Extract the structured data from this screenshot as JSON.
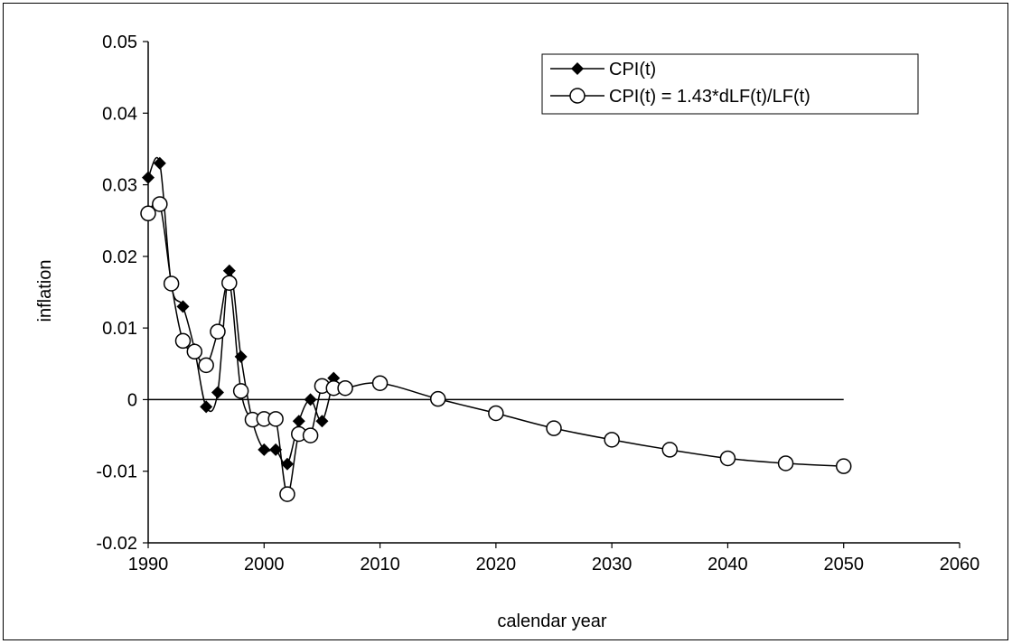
{
  "chart_data": {
    "type": "line",
    "title": "",
    "xlabel": "calendar year",
    "ylabel": "inflation",
    "xlim": [
      1990,
      2060
    ],
    "ylim": [
      -0.02,
      0.05
    ],
    "x_ticks": [
      1990,
      2000,
      2010,
      2020,
      2030,
      2040,
      2050,
      2060
    ],
    "y_ticks": [
      -0.02,
      -0.01,
      0,
      0.01,
      0.02,
      0.03,
      0.04,
      0.05
    ],
    "x_tick_labels": [
      "1990",
      "2000",
      "2010",
      "2020",
      "2030",
      "2040",
      "2050",
      "2060"
    ],
    "y_tick_labels": [
      "-0.02",
      "-0.01",
      "0",
      "0.01",
      "0.02",
      "0.03",
      "0.04",
      "0.05"
    ],
    "grid": false,
    "legend_position": "top-right",
    "zero_line": {
      "from": 1990,
      "to": 2050
    },
    "series": [
      {
        "name": "CPI(t)",
        "marker": "filled-diamond",
        "color": "#000000",
        "points": [
          [
            1990,
            0.031
          ],
          [
            1991,
            0.033
          ],
          [
            1992,
            0.016
          ],
          [
            1993,
            0.013
          ],
          [
            1994,
            0.007
          ],
          [
            1995,
            -0.001
          ],
          [
            1996,
            0.001
          ],
          [
            1997,
            0.018
          ],
          [
            1998,
            0.006
          ],
          [
            1999,
            -0.003
          ],
          [
            2000,
            -0.007
          ],
          [
            2001,
            -0.007
          ],
          [
            2002,
            -0.009
          ],
          [
            2003,
            -0.003
          ],
          [
            2004,
            0.0
          ],
          [
            2005,
            -0.003
          ],
          [
            2006,
            0.003
          ]
        ]
      },
      {
        "name": "CPI(t) = 1.43*dLF(t)/LF(t)",
        "marker": "open-circle",
        "color": "#000000",
        "line_start": [
          1989.7,
          0.025
        ],
        "points": [
          [
            1990,
            0.026
          ],
          [
            1991,
            0.0273
          ],
          [
            1992,
            0.0162
          ],
          [
            1993,
            0.0082
          ],
          [
            1994,
            0.0067
          ],
          [
            1995,
            0.0048
          ],
          [
            1996,
            0.0095
          ],
          [
            1997,
            0.0163
          ],
          [
            1998,
            0.0012
          ],
          [
            1999,
            -0.0028
          ],
          [
            2000,
            -0.0027
          ],
          [
            2001,
            -0.0027
          ],
          [
            2002,
            -0.0132
          ],
          [
            2003,
            -0.0048
          ],
          [
            2004,
            -0.005
          ],
          [
            2005,
            0.0019
          ],
          [
            2006,
            0.0016
          ],
          [
            2007,
            0.0016
          ],
          [
            2010,
            0.0023
          ],
          [
            2015,
            0.0001
          ],
          [
            2020,
            -0.0019
          ],
          [
            2025,
            -0.004
          ],
          [
            2030,
            -0.0056
          ],
          [
            2035,
            -0.007
          ],
          [
            2040,
            -0.0082
          ],
          [
            2045,
            -0.0089
          ],
          [
            2050,
            -0.0093
          ]
        ]
      }
    ]
  }
}
